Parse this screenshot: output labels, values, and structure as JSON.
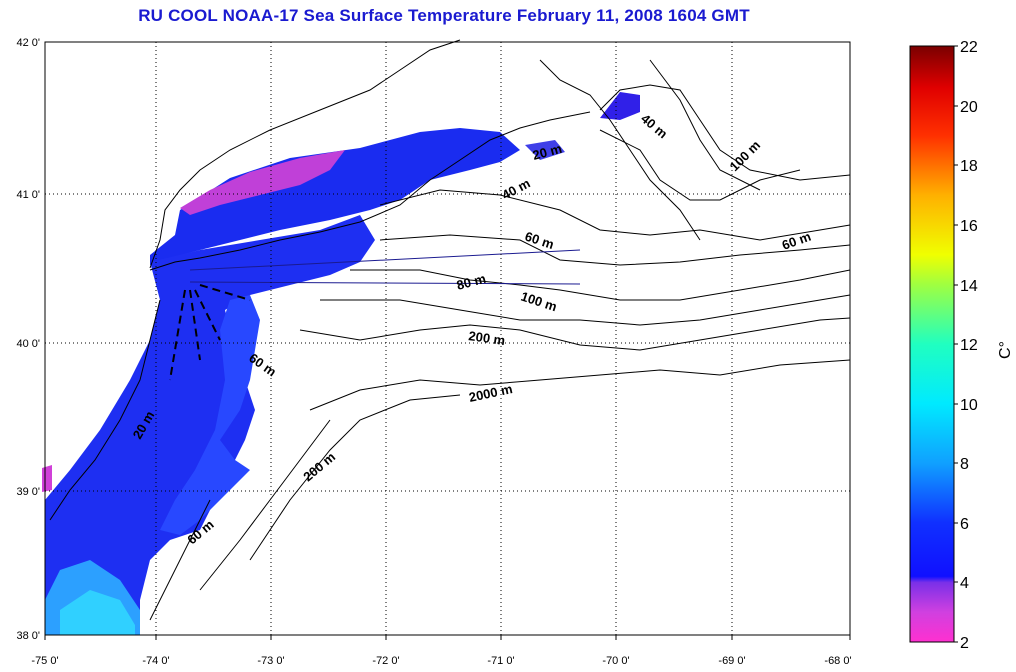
{
  "title": "RU COOL  NOAA-17 Sea Surface Temperature February 11, 2008 1604 GMT",
  "colors": {
    "title": "#1a1ad0",
    "land": "#ffffff",
    "frame": "#000000"
  },
  "map": {
    "lon_ticks": [
      "-75 0'",
      "-74 0'",
      "-73 0'",
      "-72 0'",
      "-71 0'",
      "-70 0'",
      "-69 0'",
      "-68 0'"
    ],
    "lat_ticks": [
      "42 0'",
      "41 0'",
      "40 0'",
      "39 0'",
      "38 0'"
    ],
    "grid": true,
    "depth_labels": [
      {
        "text": "20 m",
        "region": "long-island-sound"
      },
      {
        "text": "40 m",
        "region": "southern-new-england"
      },
      {
        "text": "60 m",
        "region": "mid-shelf-north"
      },
      {
        "text": "80 m",
        "region": "outer-shelf-north"
      },
      {
        "text": "100 m",
        "region": "outer-shelf-north"
      },
      {
        "text": "200 m",
        "region": "shelf-break-north"
      },
      {
        "text": "2000 m",
        "region": "slope"
      },
      {
        "text": "60 m",
        "region": "new-jersey-shelf"
      },
      {
        "text": "20 m",
        "region": "new-jersey-inner"
      },
      {
        "text": "200 m",
        "region": "shelf-break-south"
      },
      {
        "text": "60 m",
        "region": "delmarva-shelf"
      },
      {
        "text": "40 m",
        "region": "nantucket"
      },
      {
        "text": "100 m",
        "region": "georges-bank"
      },
      {
        "text": "60 m",
        "region": "georges-bank-east"
      }
    ]
  },
  "colorbar": {
    "unit": "C°",
    "ticks": [
      "22",
      "20",
      "18",
      "16",
      "14",
      "12",
      "10",
      "8",
      "6",
      "4",
      "2"
    ],
    "min": 2,
    "max": 22
  }
}
